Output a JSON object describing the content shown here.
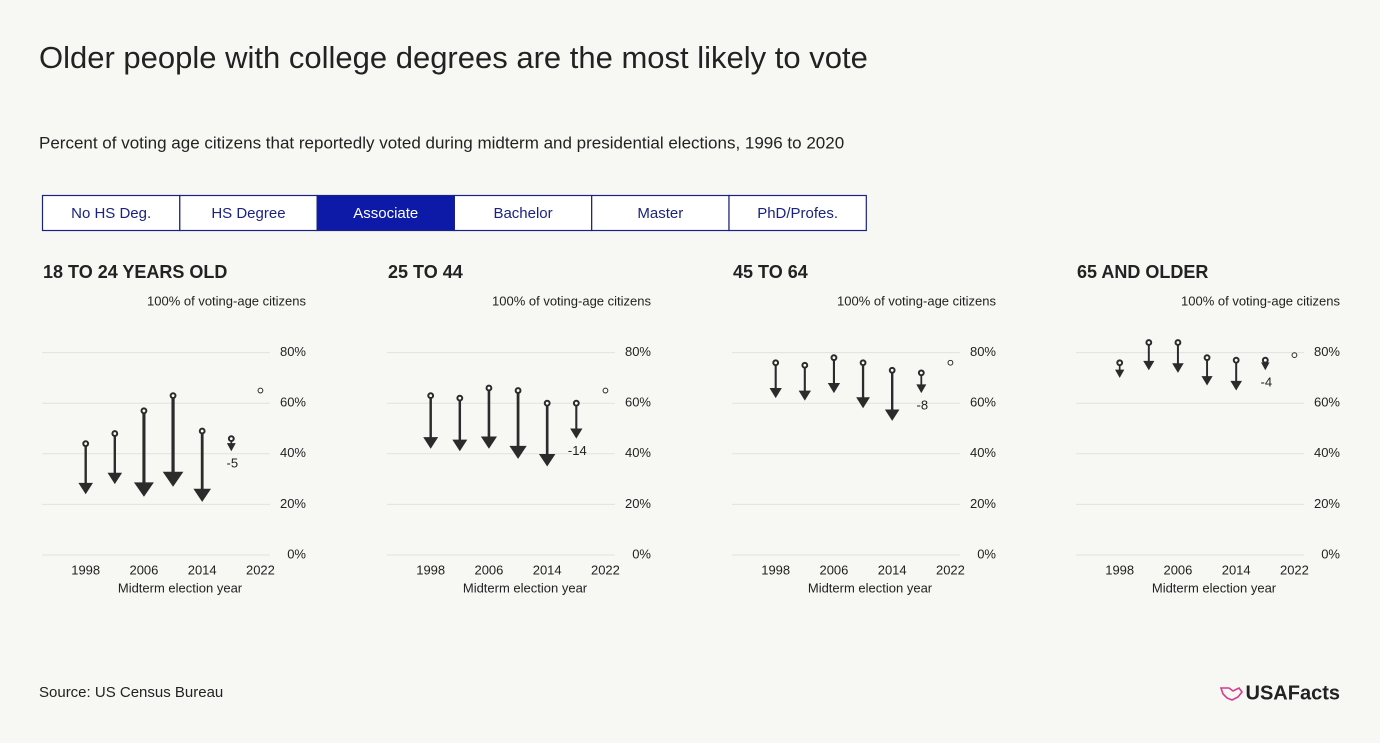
{
  "header": {
    "title": "Older people with college degrees are the most likely to vote",
    "subtitle": "Percent of voting age citizens that reportedly voted during midterm and presidential elections, 1996 to 2020"
  },
  "tabs": {
    "items": [
      "No HS Deg.",
      "HS Degree",
      "Associate",
      "Bachelor",
      "Master",
      "PhD/Profes."
    ],
    "active": 2
  },
  "chart_data": [
    {
      "type": "arrow",
      "title": "18 TO 24 YEARS OLD",
      "top_label": "100% of voting-age citizens",
      "xlabel": "Midterm election year",
      "x": [
        1998,
        2002,
        2006,
        2010,
        2014,
        2018,
        2022
      ],
      "series": [
        {
          "color": "#2b2b2b",
          "values": [
            44,
            48,
            57,
            63,
            49,
            46,
            65
          ]
        },
        {
          "color": "#2b2b2b",
          "values": [
            24,
            28,
            23,
            27,
            21,
            41,
            null
          ]
        }
      ],
      "annotation": "-5",
      "xlim": [
        1992,
        2024
      ],
      "xticks": [
        1998,
        2006,
        2014,
        2022
      ],
      "ylim": [
        0,
        100
      ],
      "yticks": [
        {
          "value": 0,
          "label": "0%"
        },
        {
          "value": 20,
          "label": "20%"
        },
        {
          "value": 40,
          "label": "40%"
        },
        {
          "value": 60,
          "label": "60%"
        },
        {
          "value": 80,
          "label": "80%"
        }
      ],
      "grid": true
    },
    {
      "type": "arrow",
      "title": "25 TO 44",
      "top_label": "100% of voting-age citizens",
      "xlabel": "Midterm election year",
      "x": [
        1998,
        2002,
        2006,
        2010,
        2014,
        2018,
        2022
      ],
      "series": [
        {
          "color": "#2b2b2b",
          "values": [
            63,
            62,
            66,
            65,
            60,
            60,
            65
          ]
        },
        {
          "color": "#2b2b2b",
          "values": [
            42,
            41,
            42,
            38,
            35,
            46,
            null
          ]
        }
      ],
      "annotation": "-14",
      "xlim": [
        1992,
        2024
      ],
      "xticks": [
        1998,
        2006,
        2014,
        2022
      ],
      "ylim": [
        0,
        100
      ],
      "yticks": [
        {
          "value": 0,
          "label": "0%"
        },
        {
          "value": 20,
          "label": "20%"
        },
        {
          "value": 40,
          "label": "40%"
        },
        {
          "value": 60,
          "label": "60%"
        },
        {
          "value": 80,
          "label": "80%"
        }
      ],
      "grid": true
    },
    {
      "type": "arrow",
      "title": "45 TO 64",
      "top_label": "100% of voting-age citizens",
      "xlabel": "Midterm election year",
      "x": [
        1998,
        2002,
        2006,
        2010,
        2014,
        2018,
        2022
      ],
      "series": [
        {
          "color": "#2b2b2b",
          "values": [
            76,
            75,
            78,
            76,
            73,
            72,
            76
          ]
        },
        {
          "color": "#2b2b2b",
          "values": [
            62,
            61,
            64,
            58,
            53,
            64,
            null
          ]
        }
      ],
      "annotation": "-8",
      "xlim": [
        1992,
        2024
      ],
      "xticks": [
        1998,
        2006,
        2014,
        2022
      ],
      "ylim": [
        0,
        100
      ],
      "yticks": [
        {
          "value": 0,
          "label": "0%"
        },
        {
          "value": 20,
          "label": "20%"
        },
        {
          "value": 40,
          "label": "40%"
        },
        {
          "value": 60,
          "label": "60%"
        },
        {
          "value": 80,
          "label": "80%"
        }
      ],
      "grid": true
    },
    {
      "type": "arrow",
      "title": "65 AND OLDER",
      "top_label": "100% of voting-age citizens",
      "xlabel": "Midterm election year",
      "x": [
        1998,
        2002,
        2006,
        2010,
        2014,
        2018,
        2022
      ],
      "series": [
        {
          "color": "#2b2b2b",
          "values": [
            76,
            84,
            84,
            78,
            77,
            77,
            79
          ]
        },
        {
          "color": "#2b2b2b",
          "values": [
            70,
            73,
            72,
            67,
            65,
            73,
            null
          ]
        }
      ],
      "annotation": "-4",
      "xlim": [
        1992,
        2024
      ],
      "xticks": [
        1998,
        2006,
        2014,
        2022
      ],
      "ylim": [
        0,
        100
      ],
      "yticks": [
        {
          "value": 0,
          "label": "0%"
        },
        {
          "value": 20,
          "label": "20%"
        },
        {
          "value": 40,
          "label": "40%"
        },
        {
          "value": 60,
          "label": "60%"
        },
        {
          "value": 80,
          "label": "80%"
        }
      ],
      "grid": true
    }
  ],
  "footer": {
    "source": "Source: US Census Bureau",
    "logo": "USAFacts"
  }
}
